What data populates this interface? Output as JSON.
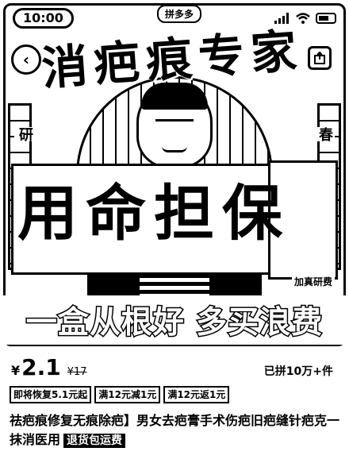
{
  "status_bar": {
    "time": "10:00"
  },
  "app_badge": "拼多多",
  "banner": {
    "title": "消疤痕专家",
    "side_left": "研",
    "side_right": "春",
    "sign_text": "用命担保",
    "sign_caption": "加真研费",
    "slogan": "一盒从根好 多买浪费"
  },
  "price": {
    "currency": "¥",
    "value": "2.1",
    "original": "¥17",
    "sold": "已拼10万+件"
  },
  "tags": [
    "即将恢复5.1元起",
    "满12元减1元",
    "满12元返1元"
  ],
  "product": {
    "title": "祛疤痕修复无痕除疤】男女去疤膏手术伤疤旧疤缝针疤克一抹消医用",
    "badge": "退货包运费"
  },
  "icons": {
    "back": "chevron-left-icon",
    "share": "share-icon"
  }
}
